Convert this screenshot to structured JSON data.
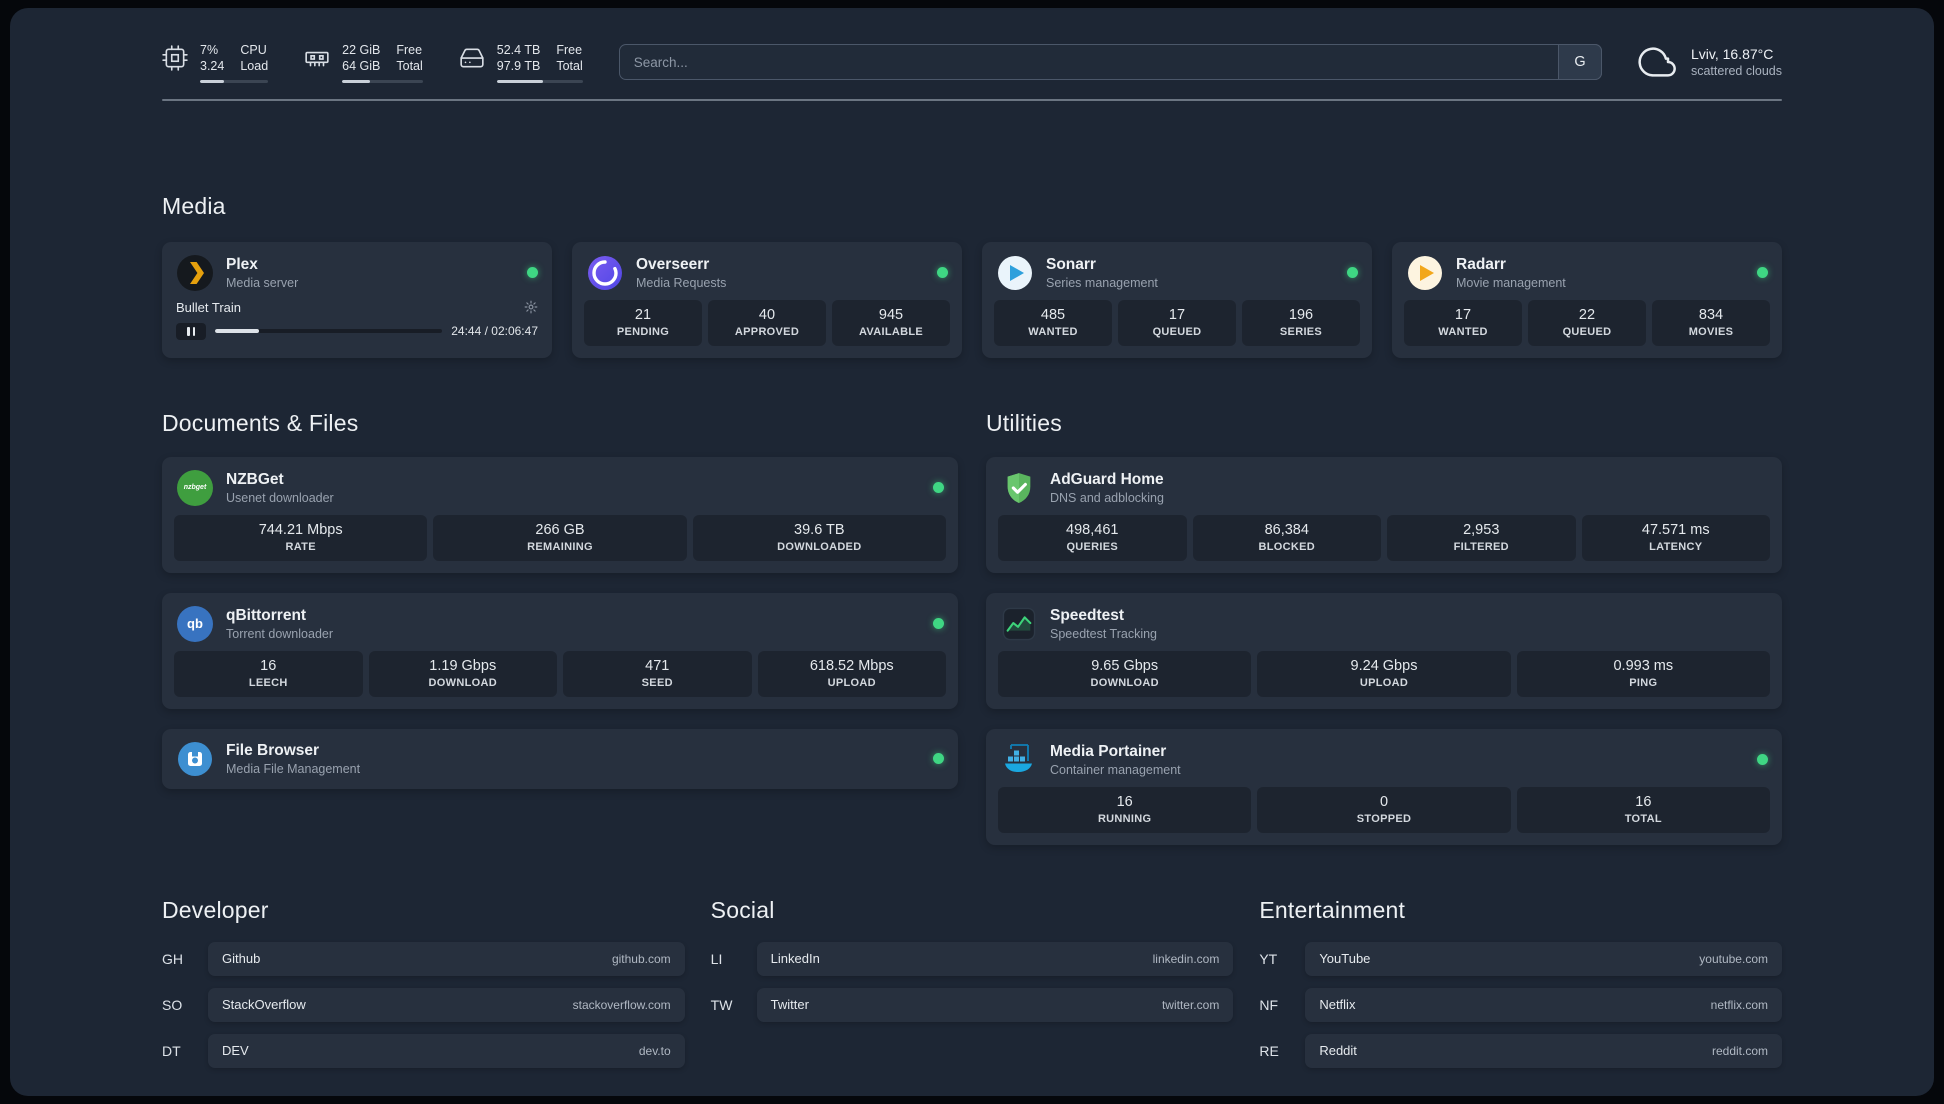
{
  "topbar": {
    "cpu": {
      "value_top": "7%",
      "value_bottom": "3.24",
      "label_top": "CPU",
      "label_bottom": "Load",
      "bar_percent": 35
    },
    "memory": {
      "value_top": "22 GiB",
      "value_bottom": "64 GiB",
      "label_top": "Free",
      "label_bottom": "Total",
      "bar_percent": 34
    },
    "disk": {
      "value_top": "52.4 TB",
      "value_bottom": "97.9 TB",
      "label_top": "Free",
      "label_bottom": "Total",
      "bar_percent": 54
    },
    "search": {
      "placeholder": "Search...",
      "provider_label": "G"
    },
    "weather": {
      "location": "Lviv, 16.87°C",
      "condition": "scattered clouds"
    }
  },
  "media": {
    "title": "Media",
    "plex": {
      "name": "Plex",
      "desc": "Media server",
      "now_playing": "Bullet Train",
      "elapsed_total": "24:44 / 02:06:47",
      "progress_percent": 19.5
    },
    "overseerr": {
      "name": "Overseerr",
      "desc": "Media Requests",
      "stats": [
        {
          "value": "21",
          "label": "PENDING"
        },
        {
          "value": "40",
          "label": "APPROVED"
        },
        {
          "value": "945",
          "label": "AVAILABLE"
        }
      ]
    },
    "sonarr": {
      "name": "Sonarr",
      "desc": "Series management",
      "stats": [
        {
          "value": "485",
          "label": "WANTED"
        },
        {
          "value": "17",
          "label": "QUEUED"
        },
        {
          "value": "196",
          "label": "SERIES"
        }
      ]
    },
    "radarr": {
      "name": "Radarr",
      "desc": "Movie management",
      "stats": [
        {
          "value": "17",
          "label": "WANTED"
        },
        {
          "value": "22",
          "label": "QUEUED"
        },
        {
          "value": "834",
          "label": "MOVIES"
        }
      ]
    }
  },
  "documents": {
    "title": "Documents & Files",
    "nzbget": {
      "name": "NZBGet",
      "desc": "Usenet downloader",
      "stats": [
        {
          "value": "744.21 Mbps",
          "label": "RATE"
        },
        {
          "value": "266 GB",
          "label": "REMAINING"
        },
        {
          "value": "39.6 TB",
          "label": "DOWNLOADED"
        }
      ]
    },
    "qbittorrent": {
      "name": "qBittorrent",
      "desc": "Torrent downloader",
      "stats": [
        {
          "value": "16",
          "label": "LEECH"
        },
        {
          "value": "1.19 Gbps",
          "label": "DOWNLOAD"
        },
        {
          "value": "471",
          "label": "SEED"
        },
        {
          "value": "618.52 Mbps",
          "label": "UPLOAD"
        }
      ]
    },
    "filebrowser": {
      "name": "File Browser",
      "desc": "Media File Management"
    }
  },
  "utilities": {
    "title": "Utilities",
    "adguard": {
      "name": "AdGuard Home",
      "desc": "DNS and adblocking",
      "stats": [
        {
          "value": "498,461",
          "label": "QUERIES"
        },
        {
          "value": "86,384",
          "label": "BLOCKED"
        },
        {
          "value": "2,953",
          "label": "FILTERED"
        },
        {
          "value": "47.571 ms",
          "label": "LATENCY"
        }
      ]
    },
    "speedtest": {
      "name": "Speedtest",
      "desc": "Speedtest Tracking",
      "stats": [
        {
          "value": "9.65 Gbps",
          "label": "DOWNLOAD"
        },
        {
          "value": "9.24 Gbps",
          "label": "UPLOAD"
        },
        {
          "value": "0.993 ms",
          "label": "PING"
        }
      ]
    },
    "portainer": {
      "name": "Media Portainer",
      "desc": "Container management",
      "stats": [
        {
          "value": "16",
          "label": "RUNNING"
        },
        {
          "value": "0",
          "label": "STOPPED"
        },
        {
          "value": "16",
          "label": "TOTAL"
        }
      ]
    }
  },
  "bookmarks": {
    "developer": {
      "title": "Developer",
      "items": [
        {
          "abbr": "GH",
          "name": "Github",
          "domain": "github.com"
        },
        {
          "abbr": "SO",
          "name": "StackOverflow",
          "domain": "stackoverflow.com"
        },
        {
          "abbr": "DT",
          "name": "DEV",
          "domain": "dev.to"
        }
      ]
    },
    "social": {
      "title": "Social",
      "items": [
        {
          "abbr": "LI",
          "name": "LinkedIn",
          "domain": "linkedin.com"
        },
        {
          "abbr": "TW",
          "name": "Twitter",
          "domain": "twitter.com"
        }
      ]
    },
    "entertainment": {
      "title": "Entertainment",
      "items": [
        {
          "abbr": "YT",
          "name": "YouTube",
          "domain": "youtube.com"
        },
        {
          "abbr": "NF",
          "name": "Netflix",
          "domain": "netflix.com"
        },
        {
          "abbr": "RE",
          "name": "Reddit",
          "domain": "reddit.com"
        }
      ]
    }
  },
  "icons": {
    "cpu": "chip",
    "memory": "ram-stick",
    "disk": "hard-drive",
    "weather": "cloud",
    "plex": "gold-chevron-circle",
    "overseerr": "purple-swirl-circle",
    "sonarr": "blue-play-circle",
    "radarr": "orange-play-circle",
    "nzbget_text": "nzbget",
    "qbittorrent_text": "qb",
    "adguard": "green-shield-check",
    "speedtest": "green-graph-tile",
    "filebrowser": "blue-disk-circle",
    "portainer": "container-crane",
    "status": "green-dot",
    "player": "pause-and-gear"
  },
  "colors": {
    "status_online": "#3fd683",
    "plex": "#e5a00d",
    "overseerr": "#5a52d5",
    "sonarr": "#2ea0dc",
    "radarr": "#f2a71b",
    "nzbget": "#3f9e3f",
    "qbittorrent": "#3873c0",
    "adguard": "#67c46b",
    "speedtest_accent": "#3dd37a",
    "filebrowser": "#3d8fd1",
    "portainer": "#1aa7e0"
  }
}
